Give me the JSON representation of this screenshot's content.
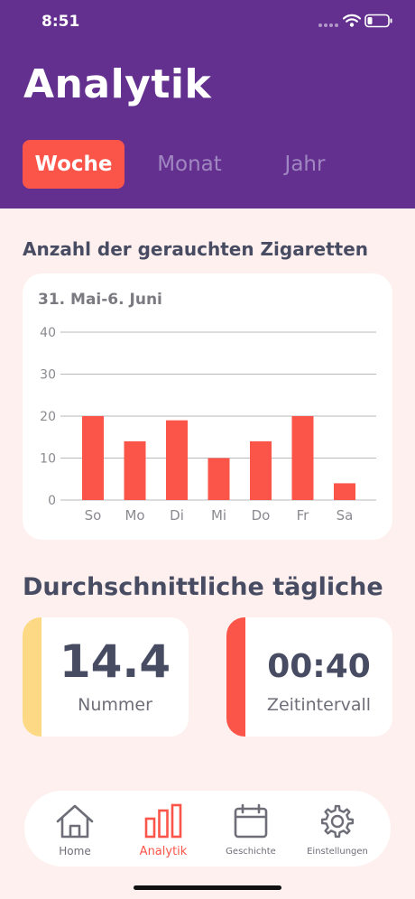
{
  "status_bar": {
    "time": "8:51",
    "icons": [
      "signal-dots-icon",
      "wifi-icon",
      "battery-icon"
    ]
  },
  "header": {
    "title": "Analytik",
    "background": "#63308f"
  },
  "tabs": [
    {
      "label": "Woche",
      "active": true
    },
    {
      "label": "Monat",
      "active": false
    },
    {
      "label": "Jahr",
      "active": false
    }
  ],
  "chart_section": {
    "title": "Anzahl der gerauchten Zigaretten"
  },
  "chart_data": {
    "type": "bar",
    "subtitle": "31. Mai-6. Juni",
    "categories": [
      "So",
      "Mo",
      "Di",
      "Mi",
      "Do",
      "Fr",
      "Sa"
    ],
    "values": [
      20,
      14,
      19,
      10,
      14,
      20,
      4
    ],
    "yticks": [
      0,
      10,
      20,
      30,
      40
    ],
    "ylim": [
      0,
      40
    ],
    "grid": true,
    "bar_color": "#fb5549"
  },
  "average_section": {
    "title": "Durchschnittliche tägliche",
    "stats": [
      {
        "value": "14.4",
        "label": "Nummer",
        "accent": "#fdd986"
      },
      {
        "value": "00:40",
        "label": "Zeitintervall",
        "accent": "#fb5549"
      }
    ]
  },
  "bottom_nav": {
    "items": [
      {
        "label": "Home",
        "icon": "home-icon",
        "active": false
      },
      {
        "label": "Analytik",
        "icon": "bar-chart-icon",
        "active": true
      },
      {
        "label": "Geschichte",
        "icon": "calendar-icon",
        "active": false
      },
      {
        "label": "Einstellungen",
        "icon": "gear-icon",
        "active": false
      }
    ]
  },
  "colors": {
    "accent": "#fb5549",
    "page_background": "#fdf0ee",
    "text_dark": "#484c63"
  }
}
